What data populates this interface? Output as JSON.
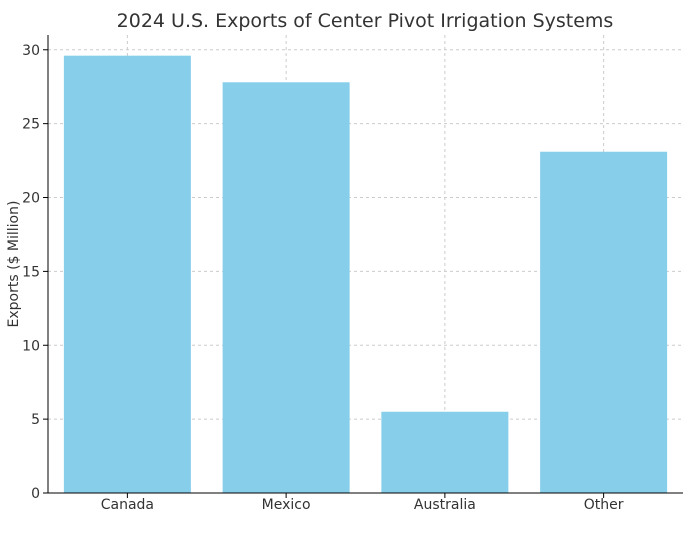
{
  "chart_data": {
    "type": "bar",
    "title": "2024 U.S. Exports of Center Pivot Irrigation Systems",
    "xlabel": "",
    "ylabel": "Exports ($ Million)",
    "categories": [
      "Canada",
      "Mexico",
      "Australia",
      "Other"
    ],
    "values": [
      29.6,
      27.8,
      5.5,
      23.1
    ],
    "ylim": [
      0,
      31
    ],
    "yticks": [
      0,
      5,
      10,
      15,
      20,
      25,
      30
    ],
    "grid": true,
    "bar_color": "#87ceeb",
    "axis_color": "#000000",
    "grid_color": "#cccccc"
  }
}
